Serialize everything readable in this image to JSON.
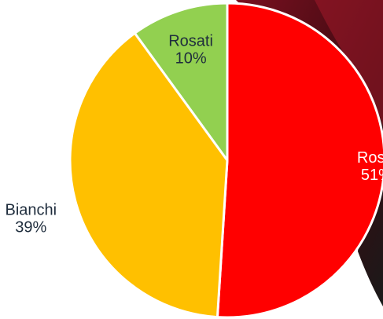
{
  "chart_data": {
    "type": "pie",
    "categories": [
      "Rossi",
      "Bianchi",
      "Rosati"
    ],
    "values": [
      51,
      39,
      10
    ],
    "value_suffix": "%",
    "colors": {
      "Rossi": "#FF0000",
      "Bianchi": "#FFC000",
      "Rosati": "#92D050"
    },
    "label_colors": {
      "Rossi": "#ffffff",
      "Bianchi": "#1f2d3d",
      "Rosati": "#1f2d3d"
    },
    "start": "top",
    "direction": "clockwise",
    "slice_border_color": "#ffffff",
    "legend": "none",
    "title": ""
  },
  "background": {
    "photo_colors": [
      "#3a0a10",
      "#7a1020",
      "#1a1a1a"
    ]
  }
}
